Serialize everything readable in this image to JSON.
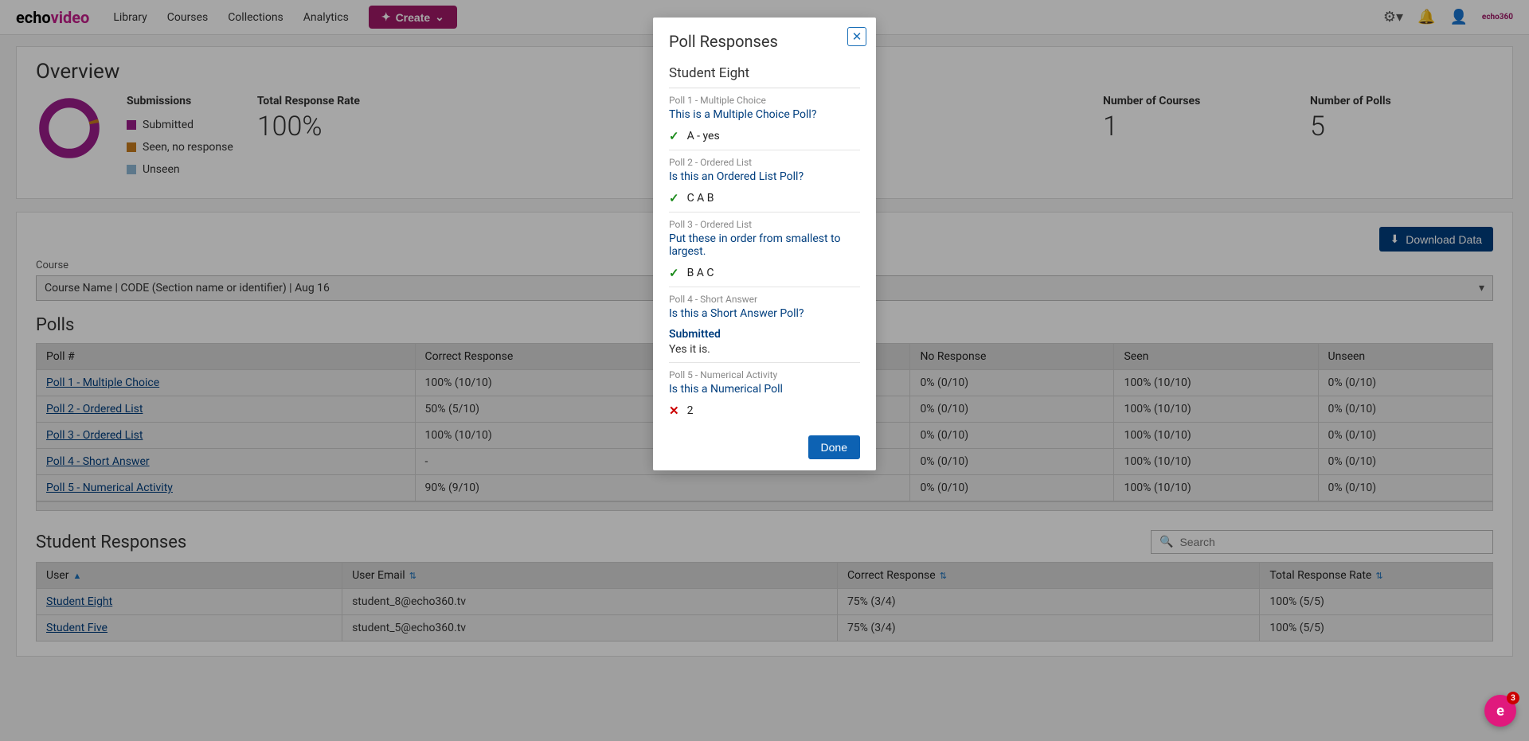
{
  "brand": {
    "echo": "echo",
    "video": "video",
    "smalllogo": "echo360"
  },
  "nav": {
    "library": "Library",
    "courses": "Courses",
    "collections": "Collections",
    "analytics": "Analytics",
    "create": "Create"
  },
  "overview": {
    "title": "Overview",
    "legend": {
      "heading": "Submissions",
      "submitted": "Submitted",
      "seen": "Seen, no response",
      "unseen": "Unseen"
    },
    "colors": {
      "submitted": "#9b1c8a",
      "seen": "#c77b1e",
      "unseen": "#8fb8d6"
    },
    "stats": {
      "rate": {
        "label": "Total Response Rate",
        "value": "100%"
      },
      "courses": {
        "label": "Number of Courses",
        "value": "1"
      },
      "polls": {
        "label": "Number of Polls",
        "value": "5"
      }
    }
  },
  "panel": {
    "download": "Download Data",
    "courseLabel": "Course",
    "courseValue": "Course Name | CODE (Section name or identifier) | Aug 16"
  },
  "pollsTable": {
    "title": "Polls",
    "headers": {
      "num": "Poll #",
      "correct": "Correct Response",
      "noresp": "No Response",
      "seen": "Seen",
      "unseen": "Unseen"
    },
    "rows": [
      {
        "name": "Poll 1 - Multiple Choice",
        "correct": "100% (10/10)",
        "noresp": "0% (0/10)",
        "seen": "100% (10/10)",
        "unseen": "0% (0/10)"
      },
      {
        "name": "Poll 2 - Ordered List",
        "correct": "50% (5/10)",
        "noresp": "0% (0/10)",
        "seen": "100% (10/10)",
        "unseen": "0% (0/10)"
      },
      {
        "name": "Poll 3 - Ordered List",
        "correct": "100% (10/10)",
        "noresp": "0% (0/10)",
        "seen": "100% (10/10)",
        "unseen": "0% (0/10)"
      },
      {
        "name": "Poll 4 - Short Answer",
        "correct": "-",
        "noresp": "0% (0/10)",
        "seen": "100% (10/10)",
        "unseen": "0% (0/10)"
      },
      {
        "name": "Poll 5 - Numerical Activity",
        "correct": "90% (9/10)",
        "noresp": "0% (0/10)",
        "seen": "100% (10/10)",
        "unseen": "0% (0/10)"
      }
    ]
  },
  "studentTable": {
    "title": "Student Responses",
    "searchPlaceholder": "Search",
    "headers": {
      "user": "User",
      "email": "User Email",
      "correct": "Correct Response",
      "rate": "Total Response Rate"
    },
    "rows": [
      {
        "user": "Student Eight",
        "email": "student_8@echo360.tv",
        "correct": "75% (3/4)",
        "rate": "100% (5/5)"
      },
      {
        "user": "Student Five",
        "email": "student_5@echo360.tv",
        "correct": "75% (3/4)",
        "rate": "100% (5/5)"
      }
    ]
  },
  "modal": {
    "title": "Poll Responses",
    "student": "Student Eight",
    "done": "Done",
    "polls": [
      {
        "meta": "Poll 1 - Multiple Choice",
        "q": "This is a Multiple Choice Poll?",
        "status": "check",
        "ans": "A - yes"
      },
      {
        "meta": "Poll 2 - Ordered List",
        "q": "Is this an Ordered List Poll?",
        "status": "check",
        "ans": "C A B"
      },
      {
        "meta": "Poll 3 - Ordered List",
        "q": "Put these in order from smallest to largest.",
        "status": "check",
        "ans": "B A C"
      },
      {
        "meta": "Poll 4 - Short Answer",
        "q": "Is this a Short Answer Poll?",
        "status": "text",
        "subLabel": "Submitted",
        "subText": "Yes it is."
      },
      {
        "meta": "Poll 5 - Numerical Activity",
        "q": "Is this a Numerical Poll",
        "status": "cross",
        "ans": "2"
      }
    ]
  },
  "fab": {
    "letter": "e",
    "badge": "3"
  }
}
